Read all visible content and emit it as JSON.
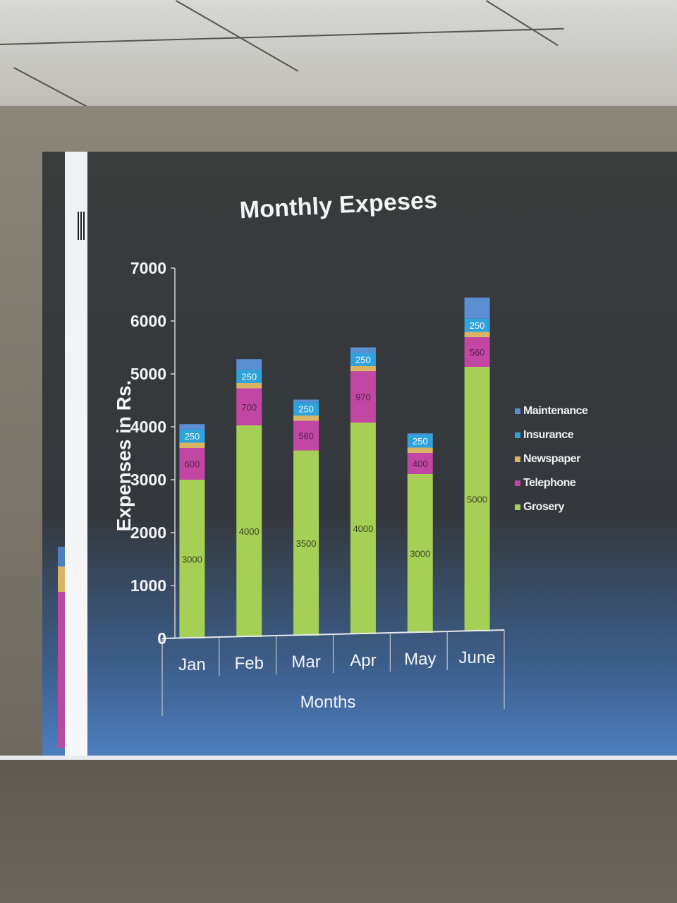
{
  "chart_data": {
    "type": "bar",
    "stacked": true,
    "title": "Monthly Expeses",
    "xlabel": "Months",
    "ylabel": "Expenses in Rs.",
    "categories": [
      "Jan",
      "Feb",
      "Mar",
      "Apr",
      "May",
      "June"
    ],
    "ylim": [
      0,
      7000
    ],
    "yticks": [
      0,
      1000,
      2000,
      3000,
      4000,
      5000,
      6000,
      7000
    ],
    "legend_position": "right",
    "series": [
      {
        "name": "Grosery",
        "color": "#a6cf55",
        "values": [
          3000,
          4000,
          3500,
          4000,
          3000,
          5000
        ]
      },
      {
        "name": "Telephone",
        "color": "#c247a4",
        "values": [
          600,
          700,
          560,
          970,
          400,
          560
        ]
      },
      {
        "name": "Newspaper",
        "color": "#d8b464",
        "values": [
          100,
          100,
          100,
          100,
          100,
          100
        ]
      },
      {
        "name": "Insurance",
        "color": "#2fa3dd",
        "values": [
          250,
          250,
          250,
          250,
          250,
          250
        ]
      },
      {
        "name": "Maintenance",
        "color": "#5b8fd4",
        "values": [
          100,
          200,
          50,
          100,
          20,
          400
        ]
      }
    ],
    "data_labels": {
      "Grosery": [
        "3000",
        "4000",
        "3500",
        "4000",
        "3000",
        "5000"
      ],
      "Telephone": [
        "600",
        "700",
        "560",
        "970",
        "400",
        "560"
      ],
      "Insurance": [
        "250",
        "250",
        "250",
        "250",
        "250",
        "250"
      ]
    }
  }
}
